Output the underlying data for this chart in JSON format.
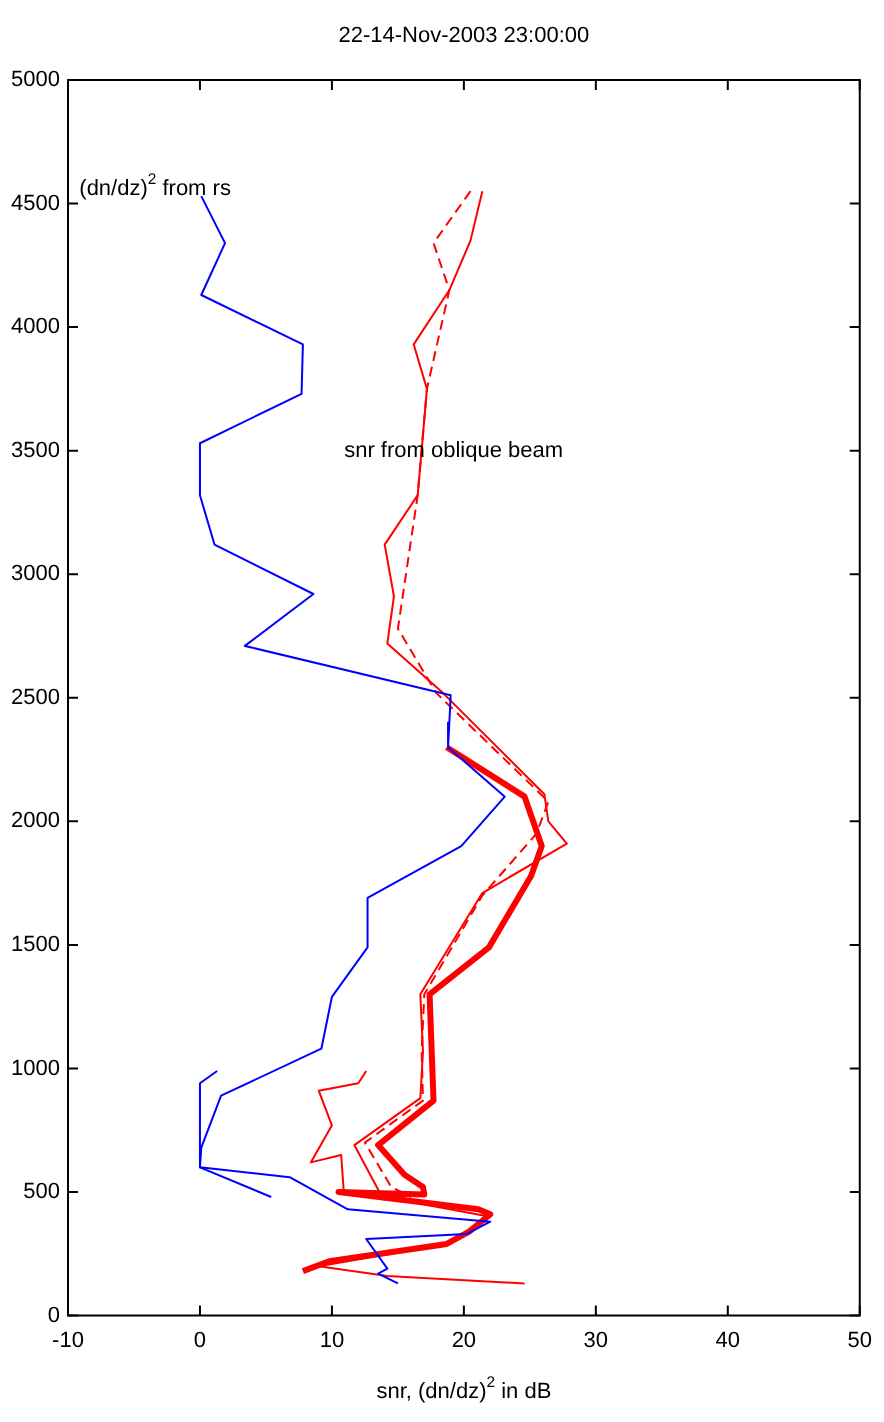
{
  "chart_data": {
    "type": "line",
    "title": "22-14-Nov-2003 23:00:00",
    "xlabel": "snr, (dn/dz)$^{2}$ in dB",
    "xlim": [
      -10,
      50
    ],
    "xticks": [
      -10,
      0,
      10,
      20,
      30,
      40,
      50
    ],
    "ylim": [
      0,
      5000
    ],
    "yticks": [
      0,
      500,
      1000,
      1500,
      2000,
      2500,
      3000,
      3500,
      4000,
      4500,
      5000
    ],
    "grid": false,
    "legend": false,
    "marker": "none",
    "annotations": [
      "(dn/dz)$^{2}$ from rs",
      "snr from oblique beam"
    ],
    "series": [
      {
        "color": "#0000ff",
        "x": [
          0.1,
          1.9,
          0.1,
          7.8,
          7.7,
          0,
          0,
          1.1,
          8.6,
          3.4,
          19,
          18.9,
          18.8,
          23.1,
          19.8,
          12.7,
          12.7,
          10,
          9.2,
          1.6,
          0.1,
          0,
          6.8,
          11.2,
          22,
          20.2,
          12.6,
          14.2,
          13.5,
          15
        ],
        "values": [
          4530,
          4340,
          4130,
          3930,
          3730,
          3530,
          3320,
          3120,
          2920,
          2710,
          2510,
          2400,
          2300,
          2100,
          1900,
          1690,
          1490,
          1290,
          1080,
          890,
          680,
          600,
          560,
          430,
          380,
          330,
          310,
          190,
          170,
          130
        ]
      },
      {
        "color": "#0000ff",
        "x": [
          1.3,
          0,
          0,
          0,
          5.4
        ],
        "values": [
          990,
          940,
          700,
          600,
          480
        ]
      },
      {
        "color": "#ff0000",
        "x": [
          18.7,
          24.6,
          25.9,
          25.1,
          21.9,
          17.4,
          17.7,
          13.5,
          15.5,
          16.9,
          17,
          10.5,
          21.1,
          22,
          20.4,
          18.7,
          9.8,
          7.8
        ],
        "values": [
          2300,
          2100,
          1900,
          1780,
          1490,
          1300,
          870,
          690,
          570,
          520,
          490,
          500,
          430,
          410,
          340,
          290,
          220,
          180
        ]
      },
      {
        "color": "#ff0000",
        "x": [
          21.4,
          20.5,
          18.9,
          16.2,
          17.2,
          16.5,
          14,
          14.7,
          14.2,
          18.4,
          26.1,
          26.4,
          27.8,
          21.4,
          16.7,
          16.9,
          16.7,
          11.7,
          13.7,
          17,
          22,
          18.7,
          9,
          14.2,
          24.6
        ],
        "values": [
          4550,
          4350,
          4150,
          3930,
          3750,
          3320,
          3120,
          2910,
          2720,
          2520,
          2110,
          2000,
          1910,
          1710,
          1300,
          1070,
          880,
          690,
          490,
          450,
          400,
          290,
          200,
          160,
          130
        ]
      },
      {
        "color": "#ff0000",
        "line_style": "dashed",
        "x": [
          20.5,
          17.7,
          18.9,
          17.2,
          16.5,
          15,
          17.9,
          26.4,
          25.5,
          21.4,
          17,
          16.8,
          16.9,
          12.5,
          14.5,
          16
        ],
        "values": [
          4550,
          4340,
          4150,
          3750,
          3320,
          2780,
          2520,
          2080,
          1950,
          1700,
          1300,
          1070,
          870,
          700,
          520,
          480
        ]
      },
      {
        "color": "#ff0000",
        "x": [
          12.6,
          12,
          9,
          10,
          8.4,
          10.7,
          10.9,
          14
        ],
        "values": [
          990,
          940,
          910,
          770,
          620,
          650,
          500,
          470
        ]
      }
    ]
  }
}
